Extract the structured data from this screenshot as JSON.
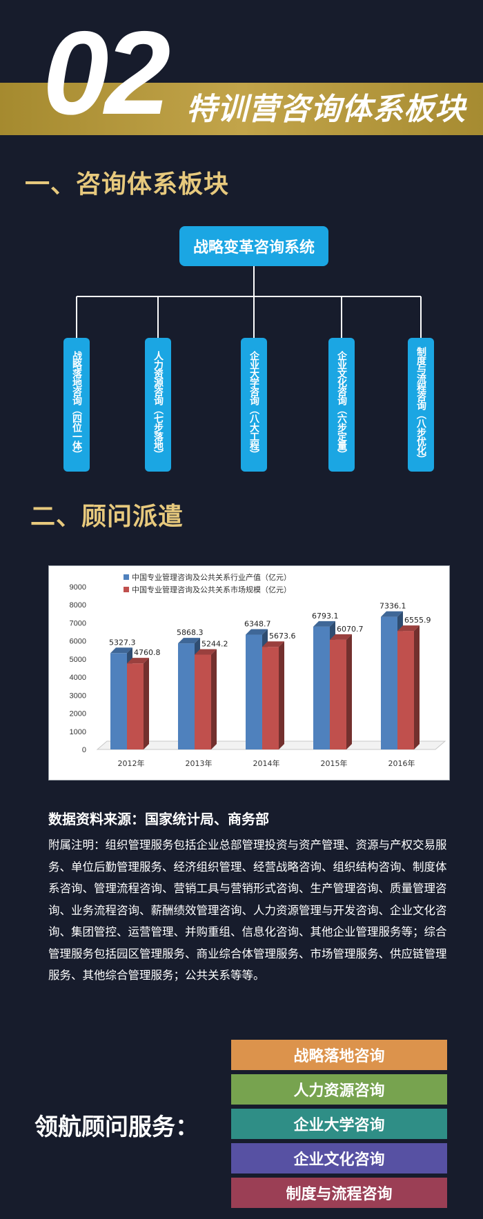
{
  "header": {
    "number": "02",
    "title": "特训营咨询体系板块"
  },
  "section1": {
    "heading": "一、咨询体系板块",
    "root": "战略变革咨询系统",
    "branches": [
      "战略落地咨询（四位一体）",
      "人力资源咨询（七步落地）",
      "企业大学咨询（八大工程）",
      "企业文化咨询（六步定量）",
      "制度与流程咨询（八步优化）"
    ]
  },
  "section2": {
    "heading": "二、顾问派遣"
  },
  "chart_data": {
    "type": "bar",
    "categories": [
      "2012年",
      "2013年",
      "2014年",
      "2015年",
      "2016年"
    ],
    "series": [
      {
        "name": "中国专业管理咨询及公共关系行业产值（亿元）",
        "values": [
          5327.3,
          5868.3,
          6348.7,
          6793.1,
          7336.1
        ],
        "color": "#4f81bd"
      },
      {
        "name": "中国专业管理咨询及公共关系市场规模（亿元）",
        "values": [
          4760.8,
          5244.2,
          5673.6,
          6070.7,
          6555.9
        ],
        "color": "#c0504d"
      }
    ],
    "value_labels": [
      [
        "5327.3",
        "5868.3",
        "6348.7",
        "6793.1",
        "7336.1"
      ],
      [
        "4760.8",
        "5244.2",
        "5673.6",
        "6070.7",
        "6555.9"
      ]
    ],
    "y_ticks": [
      "0",
      "1000",
      "2000",
      "3000",
      "4000",
      "5000",
      "6000",
      "7000",
      "8000",
      "9000"
    ],
    "ylim": [
      0,
      9000
    ],
    "legend": "top-left"
  },
  "source": "数据资料来源：国家统计局、商务部",
  "note": "附属注明：组织管理服务包括企业总部管理投资与资产管理、资源与产权交易服务、单位后勤管理服务、经济组织管理、经营战略咨询、组织结构咨询、制度体系咨询、管理流程咨询、营销工具与营销形式咨询、生产管理咨询、质量管理咨询、业务流程咨询、薪酬绩效管理咨询、人力资源管理与开发咨询、企业文化咨询、集团管控、运营管理、并购重组、信息化咨询、其他企业管理服务等；综合管理服务包括园区管理服务、商业综合体管理服务、市场管理服务、供应链管理服务、其他综合管理服务；公共关系等等。",
  "services": {
    "label": "领航顾问服务：",
    "items": [
      {
        "label": "战略落地咨询",
        "color": "#dc934c"
      },
      {
        "label": "人力资源咨询",
        "color": "#77a34f"
      },
      {
        "label": "企业大学咨询",
        "color": "#2f8e86"
      },
      {
        "label": "企业文化咨询",
        "color": "#5751a3"
      },
      {
        "label": "制度与流程咨询",
        "color": "#9b3f55"
      }
    ]
  }
}
